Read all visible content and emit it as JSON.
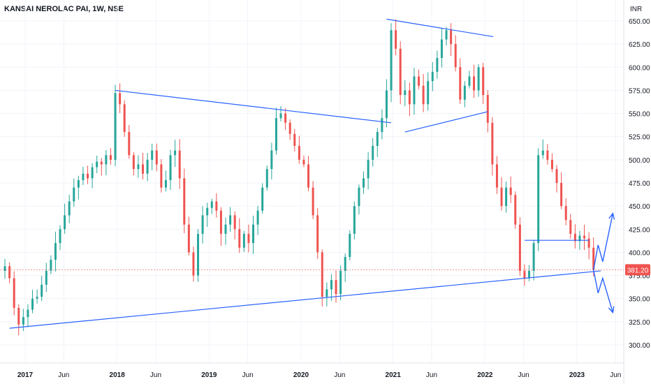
{
  "header": {
    "title": "KANSAI NEROLAC PAI, 1W, NSE",
    "currency": "INR"
  },
  "chart_data": {
    "type": "candlestick",
    "symbol": "KANSAI NEROLAC PAI",
    "interval": "1W",
    "exchange": "NSE",
    "currency": "INR",
    "ylim": [
      292,
      665
    ],
    "y_ticks": [
      "300.00",
      "325.00",
      "350.00",
      "375.00",
      "400.00",
      "425.00",
      "450.00",
      "475.00",
      "500.00",
      "525.00",
      "550.00",
      "575.00",
      "600.00",
      "625.00",
      "650.00"
    ],
    "y_tick_values": [
      300,
      325,
      350,
      375,
      400,
      425,
      450,
      475,
      500,
      525,
      550,
      575,
      600,
      625,
      650
    ],
    "x_ticks": [
      {
        "label": "2017",
        "bold": true,
        "t": 2017.0
      },
      {
        "label": "Jun",
        "bold": false,
        "t": 2017.42
      },
      {
        "label": "2018",
        "bold": true,
        "t": 2018.0
      },
      {
        "label": "Jun",
        "bold": false,
        "t": 2018.42
      },
      {
        "label": "2019",
        "bold": true,
        "t": 2019.0
      },
      {
        "label": "Jun",
        "bold": false,
        "t": 2019.42
      },
      {
        "label": "2020",
        "bold": true,
        "t": 2020.0
      },
      {
        "label": "Jun",
        "bold": false,
        "t": 2020.42
      },
      {
        "label": "2021",
        "bold": true,
        "t": 2021.0
      },
      {
        "label": "Jun",
        "bold": false,
        "t": 2021.42
      },
      {
        "label": "2022",
        "bold": true,
        "t": 2022.0
      },
      {
        "label": "Jun",
        "bold": false,
        "t": 2022.42
      },
      {
        "label": "2023",
        "bold": true,
        "t": 2023.0
      },
      {
        "label": "Jun",
        "bold": false,
        "t": 2023.42
      }
    ],
    "last_price": 381.2,
    "last_price_label": "381.20",
    "colors": {
      "up": "#26a69a",
      "down": "#ef5350",
      "trendline": "#2962ff",
      "grid": "#f0f3fa",
      "axis_text": "#131722",
      "price_line": "#ef5350"
    },
    "series": [
      {
        "t": 2016.78,
        "c": 385
      },
      {
        "t": 2016.83,
        "c": 372
      },
      {
        "t": 2016.88,
        "c": 340
      },
      {
        "t": 2016.93,
        "c": 322
      },
      {
        "t": 2016.98,
        "c": 330
      },
      {
        "t": 2017.03,
        "c": 338
      },
      {
        "t": 2017.08,
        "c": 350
      },
      {
        "t": 2017.13,
        "c": 352
      },
      {
        "t": 2017.18,
        "c": 365
      },
      {
        "t": 2017.23,
        "c": 380
      },
      {
        "t": 2017.28,
        "c": 392
      },
      {
        "t": 2017.33,
        "c": 410
      },
      {
        "t": 2017.38,
        "c": 425
      },
      {
        "t": 2017.43,
        "c": 440
      },
      {
        "t": 2017.48,
        "c": 455
      },
      {
        "t": 2017.53,
        "c": 470
      },
      {
        "t": 2017.58,
        "c": 478
      },
      {
        "t": 2017.63,
        "c": 485
      },
      {
        "t": 2017.68,
        "c": 480
      },
      {
        "t": 2017.73,
        "c": 492
      },
      {
        "t": 2017.78,
        "c": 498
      },
      {
        "t": 2017.83,
        "c": 495
      },
      {
        "t": 2017.88,
        "c": 505
      },
      {
        "t": 2017.93,
        "c": 500
      },
      {
        "t": 2017.98,
        "c": 572
      },
      {
        "t": 2018.03,
        "c": 560
      },
      {
        "t": 2018.08,
        "c": 530
      },
      {
        "t": 2018.13,
        "c": 505
      },
      {
        "t": 2018.18,
        "c": 490
      },
      {
        "t": 2018.23,
        "c": 495
      },
      {
        "t": 2018.28,
        "c": 485
      },
      {
        "t": 2018.33,
        "c": 500
      },
      {
        "t": 2018.38,
        "c": 510
      },
      {
        "t": 2018.43,
        "c": 495
      },
      {
        "t": 2018.48,
        "c": 470
      },
      {
        "t": 2018.53,
        "c": 478
      },
      {
        "t": 2018.58,
        "c": 505
      },
      {
        "t": 2018.63,
        "c": 510
      },
      {
        "t": 2018.68,
        "c": 480
      },
      {
        "t": 2018.73,
        "c": 430
      },
      {
        "t": 2018.78,
        "c": 400
      },
      {
        "t": 2018.83,
        "c": 375
      },
      {
        "t": 2018.88,
        "c": 420
      },
      {
        "t": 2018.93,
        "c": 440
      },
      {
        "t": 2018.98,
        "c": 448
      },
      {
        "t": 2019.03,
        "c": 455
      },
      {
        "t": 2019.08,
        "c": 445
      },
      {
        "t": 2019.13,
        "c": 420
      },
      {
        "t": 2019.18,
        "c": 430
      },
      {
        "t": 2019.23,
        "c": 440
      },
      {
        "t": 2019.28,
        "c": 425
      },
      {
        "t": 2019.33,
        "c": 405
      },
      {
        "t": 2019.38,
        "c": 420
      },
      {
        "t": 2019.43,
        "c": 410
      },
      {
        "t": 2019.48,
        "c": 430
      },
      {
        "t": 2019.53,
        "c": 445
      },
      {
        "t": 2019.58,
        "c": 470
      },
      {
        "t": 2019.63,
        "c": 490
      },
      {
        "t": 2019.68,
        "c": 510
      },
      {
        "t": 2019.73,
        "c": 545
      },
      {
        "t": 2019.78,
        "c": 550
      },
      {
        "t": 2019.83,
        "c": 540
      },
      {
        "t": 2019.88,
        "c": 528
      },
      {
        "t": 2019.93,
        "c": 515
      },
      {
        "t": 2019.98,
        "c": 500
      },
      {
        "t": 2020.03,
        "c": 495
      },
      {
        "t": 2020.08,
        "c": 470
      },
      {
        "t": 2020.13,
        "c": 440
      },
      {
        "t": 2020.18,
        "c": 400
      },
      {
        "t": 2020.23,
        "c": 352
      },
      {
        "t": 2020.28,
        "c": 360
      },
      {
        "t": 2020.33,
        "c": 370
      },
      {
        "t": 2020.38,
        "c": 355
      },
      {
        "t": 2020.43,
        "c": 380
      },
      {
        "t": 2020.48,
        "c": 395
      },
      {
        "t": 2020.53,
        "c": 420
      },
      {
        "t": 2020.58,
        "c": 450
      },
      {
        "t": 2020.63,
        "c": 470
      },
      {
        "t": 2020.68,
        "c": 480
      },
      {
        "t": 2020.73,
        "c": 500
      },
      {
        "t": 2020.78,
        "c": 515
      },
      {
        "t": 2020.83,
        "c": 530
      },
      {
        "t": 2020.88,
        "c": 545
      },
      {
        "t": 2020.93,
        "c": 575
      },
      {
        "t": 2020.98,
        "c": 640
      },
      {
        "t": 2021.03,
        "c": 620
      },
      {
        "t": 2021.08,
        "c": 570
      },
      {
        "t": 2021.13,
        "c": 575
      },
      {
        "t": 2021.18,
        "c": 560
      },
      {
        "t": 2021.23,
        "c": 590
      },
      {
        "t": 2021.28,
        "c": 580
      },
      {
        "t": 2021.33,
        "c": 560
      },
      {
        "t": 2021.38,
        "c": 585
      },
      {
        "t": 2021.43,
        "c": 595
      },
      {
        "t": 2021.48,
        "c": 610
      },
      {
        "t": 2021.53,
        "c": 630
      },
      {
        "t": 2021.58,
        "c": 640
      },
      {
        "t": 2021.63,
        "c": 625
      },
      {
        "t": 2021.68,
        "c": 600
      },
      {
        "t": 2021.73,
        "c": 565
      },
      {
        "t": 2021.78,
        "c": 580
      },
      {
        "t": 2021.83,
        "c": 590
      },
      {
        "t": 2021.88,
        "c": 575
      },
      {
        "t": 2021.93,
        "c": 600
      },
      {
        "t": 2021.98,
        "c": 570
      },
      {
        "t": 2022.03,
        "c": 540
      },
      {
        "t": 2022.08,
        "c": 495
      },
      {
        "t": 2022.13,
        "c": 470
      },
      {
        "t": 2022.18,
        "c": 450
      },
      {
        "t": 2022.23,
        "c": 470
      },
      {
        "t": 2022.28,
        "c": 462
      },
      {
        "t": 2022.33,
        "c": 430
      },
      {
        "t": 2022.38,
        "c": 380
      },
      {
        "t": 2022.43,
        "c": 372
      },
      {
        "t": 2022.48,
        "c": 380
      },
      {
        "t": 2022.53,
        "c": 410
      },
      {
        "t": 2022.58,
        "c": 505
      },
      {
        "t": 2022.63,
        "c": 510
      },
      {
        "t": 2022.68,
        "c": 500
      },
      {
        "t": 2022.73,
        "c": 490
      },
      {
        "t": 2022.78,
        "c": 475
      },
      {
        "t": 2022.83,
        "c": 450
      },
      {
        "t": 2022.88,
        "c": 435
      },
      {
        "t": 2022.93,
        "c": 420
      },
      {
        "t": 2022.98,
        "c": 412
      },
      {
        "t": 2023.03,
        "c": 418
      },
      {
        "t": 2023.08,
        "c": 415
      },
      {
        "t": 2023.13,
        "c": 405
      },
      {
        "t": 2023.18,
        "c": 381.2
      }
    ],
    "trendlines": [
      {
        "id": "descending-resistance",
        "t1": 2017.98,
        "p1": 575,
        "t2": 2020.98,
        "p2": 540
      },
      {
        "id": "ascending-support",
        "t1": 2016.83,
        "p1": 318,
        "t2": 2023.26,
        "p2": 380
      },
      {
        "id": "triangle-upper",
        "t1": 2020.93,
        "p1": 652,
        "t2": 2022.09,
        "p2": 633
      },
      {
        "id": "triangle-lower",
        "t1": 2021.13,
        "p1": 530,
        "t2": 2022.03,
        "p2": 552
      },
      {
        "id": "horizontal-support",
        "t1": 2022.43,
        "p1": 413,
        "t2": 2023.13,
        "p2": 413
      }
    ],
    "projections": [
      {
        "id": "projection-up",
        "points": [
          [
            2023.18,
            381
          ],
          [
            2023.23,
            408
          ],
          [
            2023.28,
            390
          ],
          [
            2023.39,
            442
          ]
        ]
      },
      {
        "id": "projection-down",
        "points": [
          [
            2023.18,
            381
          ],
          [
            2023.23,
            356
          ],
          [
            2023.28,
            372
          ],
          [
            2023.39,
            335
          ]
        ]
      }
    ]
  }
}
